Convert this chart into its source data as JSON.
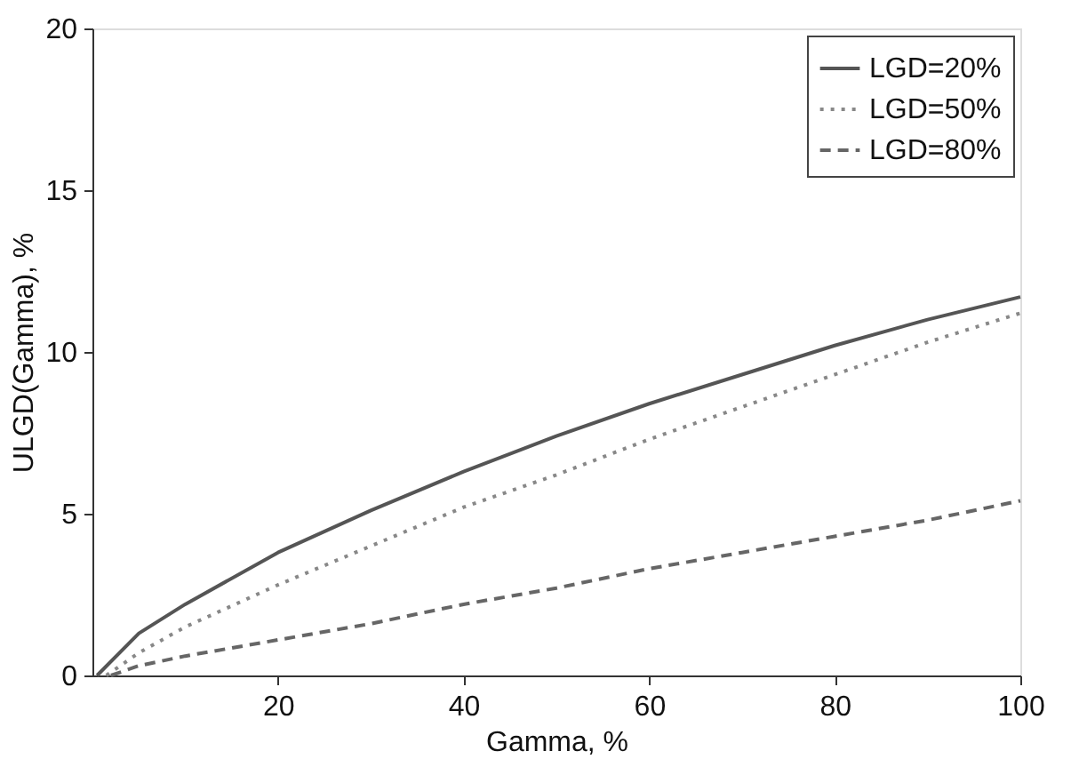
{
  "chart_data": {
    "type": "line",
    "xlabel": "Gamma, %",
    "ylabel": "ULGD(Gamma), %",
    "series": [
      {
        "name": "LGD=20%",
        "color": "#555555",
        "line_style": "solid",
        "x": [
          0.5,
          5,
          10,
          20,
          30,
          40,
          50,
          60,
          70,
          80,
          90,
          100
        ],
        "values": [
          0,
          1.3,
          2.2,
          3.8,
          5.1,
          6.3,
          7.4,
          8.4,
          9.3,
          10.2,
          11.0,
          11.7
        ]
      },
      {
        "name": "LGD=50%",
        "color": "#888888",
        "line_style": "dotted",
        "x": [
          1.5,
          5,
          10,
          20,
          30,
          40,
          50,
          60,
          70,
          80,
          90,
          100
        ],
        "values": [
          0,
          0.7,
          1.5,
          2.8,
          4.0,
          5.2,
          6.2,
          7.3,
          8.3,
          9.3,
          10.3,
          11.2
        ]
      },
      {
        "name": "LGD=80%",
        "color": "#666666",
        "line_style": "dashed",
        "x": [
          2,
          5,
          10,
          20,
          30,
          40,
          50,
          60,
          70,
          80,
          90,
          100
        ],
        "values": [
          0,
          0.3,
          0.6,
          1.1,
          1.6,
          2.2,
          2.7,
          3.3,
          3.8,
          4.3,
          4.8,
          5.4
        ]
      }
    ],
    "xlim": [
      0,
      100
    ],
    "xticks": [
      20,
      40,
      60,
      80,
      100
    ],
    "ylim": [
      0,
      20
    ],
    "yticks": [
      0,
      5,
      10,
      15,
      20
    ],
    "grid": false,
    "legend": "top right",
    "marker": "none"
  }
}
